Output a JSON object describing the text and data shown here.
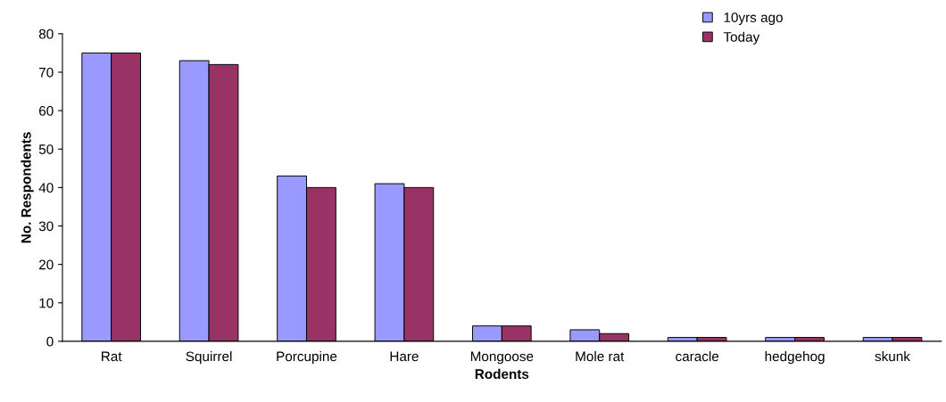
{
  "chart_data": {
    "type": "bar",
    "xlabel": "Rodents",
    "ylabel": "No. Respondents",
    "categories": [
      "Rat",
      "Squirrel",
      "Porcupine",
      "Hare",
      "Mongoose",
      "Mole rat",
      "caracle",
      "hedgehog",
      "skunk"
    ],
    "series": [
      {
        "name": "10yrs ago",
        "color": "#9999ff",
        "values": [
          75,
          73,
          43,
          41,
          4,
          3,
          1,
          1,
          1
        ]
      },
      {
        "name": "Today",
        "color": "#993366",
        "values": [
          75,
          72,
          40,
          40,
          4,
          2,
          1,
          1,
          1
        ]
      }
    ],
    "ylim": [
      0,
      80
    ],
    "yticks": [
      0,
      10,
      20,
      30,
      40,
      50,
      60,
      70,
      80
    ],
    "grid": false,
    "legend": "top right"
  }
}
